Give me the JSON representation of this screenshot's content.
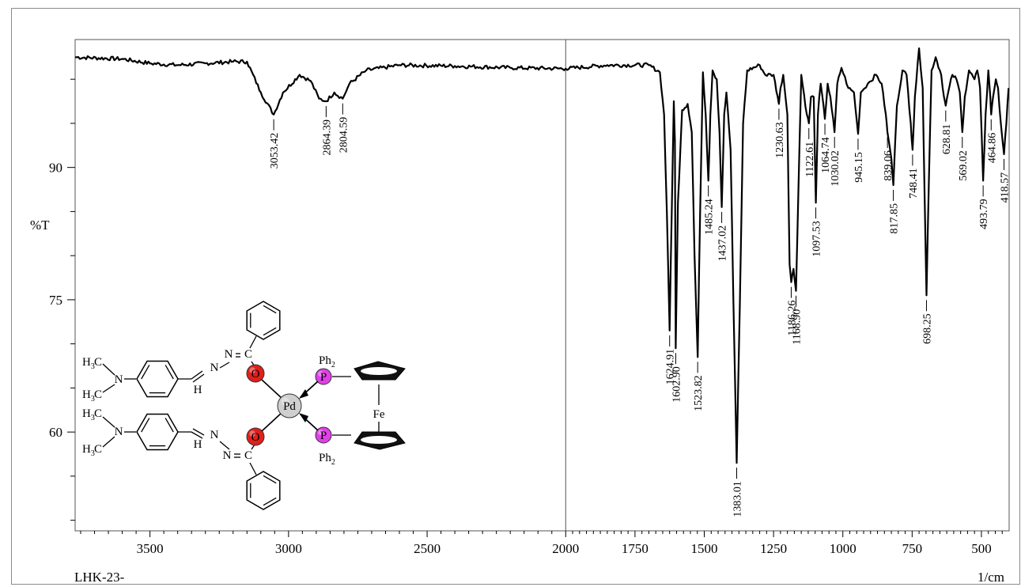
{
  "chart_data": {
    "type": "line",
    "sample_label": "LHK-23-",
    "ylabel": "%T",
    "xlabel": "1/cm",
    "x_ticks": [
      3500,
      3000,
      2500,
      2000,
      1750,
      1500,
      1250,
      1000,
      750,
      500
    ],
    "y_ticks": [
      60,
      75,
      90
    ],
    "xlim": [
      3770,
      400
    ],
    "ylim": [
      48.8,
      104.5
    ],
    "divider_x": 2000,
    "baseline": [
      [
        3770,
        102.5
      ],
      [
        3600,
        102.3
      ],
      [
        3500,
        101.8
      ],
      [
        3400,
        101.6
      ],
      [
        3300,
        101.8
      ],
      [
        3200,
        102
      ],
      [
        3150,
        102
      ],
      [
        3100,
        98.5
      ],
      [
        3053.42,
        96
      ],
      [
        3020,
        98.5
      ],
      [
        2960,
        100.5
      ],
      [
        2920,
        99.8
      ],
      [
        2890,
        97.8
      ],
      [
        2864.39,
        97.5
      ],
      [
        2835,
        98.5
      ],
      [
        2804.59,
        97.8
      ],
      [
        2780,
        99.5
      ],
      [
        2720,
        101
      ],
      [
        2600,
        101.6
      ],
      [
        2400,
        101.5
      ],
      [
        2200,
        101.3
      ],
      [
        2000,
        101.2
      ],
      [
        1850,
        101.6
      ],
      [
        1700,
        101.6
      ],
      [
        1660,
        100.8
      ],
      [
        1645,
        96
      ],
      [
        1635,
        85
      ],
      [
        1624.91,
        71.5
      ],
      [
        1618,
        84
      ],
      [
        1610,
        97.5
      ],
      [
        1606,
        93
      ],
      [
        1602.9,
        69.5
      ],
      [
        1595,
        86
      ],
      [
        1580,
        96.5
      ],
      [
        1560,
        97.2
      ],
      [
        1545,
        94
      ],
      [
        1535,
        80
      ],
      [
        1523.82,
        68.5
      ],
      [
        1515,
        85
      ],
      [
        1505,
        100.8
      ],
      [
        1495,
        96
      ],
      [
        1485.24,
        88.5
      ],
      [
        1478,
        96
      ],
      [
        1470,
        101
      ],
      [
        1455,
        100
      ],
      [
        1445,
        94
      ],
      [
        1437.02,
        85.5
      ],
      [
        1428,
        96
      ],
      [
        1420,
        98.5
      ],
      [
        1405,
        92
      ],
      [
        1395,
        75
      ],
      [
        1383.01,
        56.5
      ],
      [
        1372,
        74
      ],
      [
        1360,
        95
      ],
      [
        1345,
        101
      ],
      [
        1300,
        101.6
      ],
      [
        1280,
        100.5
      ],
      [
        1250,
        100.5
      ],
      [
        1235,
        98
      ],
      [
        1230.63,
        97.2
      ],
      [
        1225,
        99
      ],
      [
        1215,
        100.5
      ],
      [
        1200,
        96
      ],
      [
        1192,
        79
      ],
      [
        1186.26,
        77
      ],
      [
        1178,
        78.5
      ],
      [
        1168.9,
        76
      ],
      [
        1160,
        88
      ],
      [
        1150,
        100.5
      ],
      [
        1130,
        96
      ],
      [
        1122.61,
        95
      ],
      [
        1115,
        98
      ],
      [
        1105,
        98
      ],
      [
        1097.53,
        86
      ],
      [
        1090,
        96
      ],
      [
        1080,
        99.5
      ],
      [
        1064.74,
        95.5
      ],
      [
        1055,
        99.5
      ],
      [
        1045,
        98
      ],
      [
        1030.02,
        94
      ],
      [
        1020,
        99.5
      ],
      [
        1005,
        101.3
      ],
      [
        980,
        99
      ],
      [
        960,
        98.5
      ],
      [
        945.15,
        93.8
      ],
      [
        935,
        98.5
      ],
      [
        910,
        99.5
      ],
      [
        880,
        100.5
      ],
      [
        860,
        99.5
      ],
      [
        845,
        96
      ],
      [
        839.06,
        94
      ],
      [
        825,
        91
      ],
      [
        817.85,
        88
      ],
      [
        805,
        97
      ],
      [
        785,
        101
      ],
      [
        770,
        100.5
      ],
      [
        755,
        95
      ],
      [
        748.41,
        92
      ],
      [
        740,
        98
      ],
      [
        725,
        103.5
      ],
      [
        712,
        99
      ],
      [
        704,
        85
      ],
      [
        698.25,
        75.5
      ],
      [
        690,
        88
      ],
      [
        680,
        101
      ],
      [
        665,
        102.5
      ],
      [
        645,
        100.5
      ],
      [
        635,
        98
      ],
      [
        628.81,
        97
      ],
      [
        620,
        98.5
      ],
      [
        605,
        100.5
      ],
      [
        590,
        100
      ],
      [
        578,
        98.5
      ],
      [
        569.02,
        94
      ],
      [
        560,
        98
      ],
      [
        545,
        101
      ],
      [
        525,
        100
      ],
      [
        515,
        101
      ],
      [
        505,
        99
      ],
      [
        493.79,
        88.5
      ],
      [
        485,
        96
      ],
      [
        475,
        101
      ],
      [
        468,
        98
      ],
      [
        464.86,
        96
      ],
      [
        458,
        98
      ],
      [
        448,
        100
      ],
      [
        440,
        99
      ],
      [
        430,
        95
      ],
      [
        418.57,
        91.5
      ],
      [
        410,
        95
      ],
      [
        402,
        99
      ]
    ],
    "peaks": [
      {
        "x": 3053.42,
        "label": "3053.42",
        "y": 96,
        "side": "below"
      },
      {
        "x": 2864.39,
        "label": "2864.39",
        "y": 97.5,
        "side": "below"
      },
      {
        "x": 2804.59,
        "label": "2804.59",
        "y": 97.8,
        "side": "below"
      },
      {
        "x": 1624.91,
        "label": "1624.91",
        "y": 71.5,
        "side": "below"
      },
      {
        "x": 1602.9,
        "label": "1602.90",
        "y": 69.5,
        "side": "below"
      },
      {
        "x": 1523.82,
        "label": "1523.82",
        "y": 68.5,
        "side": "below"
      },
      {
        "x": 1485.24,
        "label": "1485.24",
        "y": 88.5,
        "side": "above"
      },
      {
        "x": 1437.02,
        "label": "1437.02",
        "y": 85.5,
        "side": "below"
      },
      {
        "x": 1383.01,
        "label": "1383.01",
        "y": 56.5,
        "side": "below"
      },
      {
        "x": 1230.63,
        "label": "1230.63",
        "y": 97.2,
        "side": "below"
      },
      {
        "x": 1186.26,
        "label": "1186.26",
        "y": 77,
        "side": "below"
      },
      {
        "x": 1168.9,
        "label": "1168.90",
        "y": 76,
        "side": "below"
      },
      {
        "x": 1122.61,
        "label": "1122.61",
        "y": 95,
        "side": "below"
      },
      {
        "x": 1097.53,
        "label": "1097.53",
        "y": 86,
        "side": "below"
      },
      {
        "x": 1064.74,
        "label": "1064.74",
        "y": 95.5,
        "side": "below"
      },
      {
        "x": 1030.02,
        "label": "1030.02",
        "y": 94,
        "side": "below"
      },
      {
        "x": 945.15,
        "label": "945.15",
        "y": 93.8,
        "side": "below"
      },
      {
        "x": 839.06,
        "label": "839.06",
        "y": 94,
        "side": "below"
      },
      {
        "x": 817.85,
        "label": "817.85",
        "y": 88,
        "side": "below"
      },
      {
        "x": 748.41,
        "label": "748.41",
        "y": 92,
        "side": "below"
      },
      {
        "x": 698.25,
        "label": "698.25",
        "y": 75.5,
        "side": "below"
      },
      {
        "x": 628.81,
        "label": "628.81",
        "y": 97,
        "side": "below"
      },
      {
        "x": 569.02,
        "label": "569.02",
        "y": 94,
        "side": "below"
      },
      {
        "x": 493.79,
        "label": "493.79",
        "y": 88.5,
        "side": "below"
      },
      {
        "x": 464.86,
        "label": "464.86",
        "y": 96,
        "side": "below"
      },
      {
        "x": 418.57,
        "label": "418.57",
        "y": 91.5,
        "side": "below"
      }
    ],
    "grid": false,
    "line_color": "#000000"
  },
  "structure": {
    "colors": {
      "oxygen": "#e0201c",
      "phosphorus": "#e040e8",
      "palladium": "#cfcfcf"
    },
    "labels": {
      "metal": "Pd",
      "iron": "Fe",
      "oxygen": "O",
      "phosphorus": "P",
      "ph2": "Ph",
      "ph2_sub": "2",
      "nitrogen": "N",
      "h3": "H",
      "h3_sub": "3",
      "carbon": "C",
      "hydrogen": "H"
    }
  }
}
